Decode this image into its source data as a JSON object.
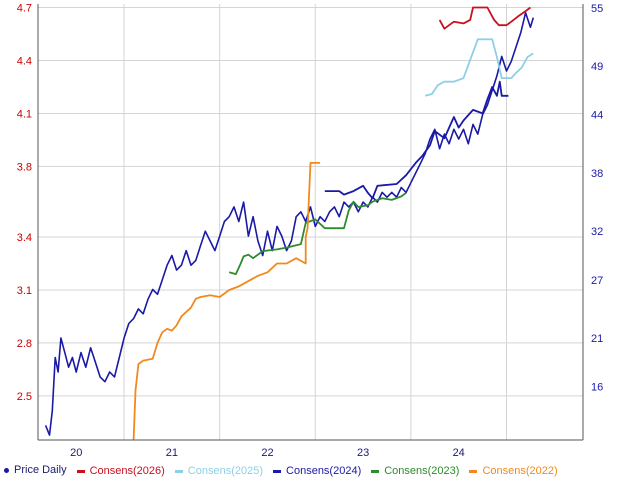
{
  "chart_data": {
    "type": "line",
    "title": "",
    "xlabel": "",
    "ylabel_left": "",
    "ylabel_right": "",
    "grid": true,
    "legend_position": "bottom",
    "x_ticks": [
      {
        "x": 2020.0,
        "label": "20"
      },
      {
        "x": 2021.0,
        "label": "21"
      },
      {
        "x": 2022.0,
        "label": "22"
      },
      {
        "x": 2023.0,
        "label": "23"
      },
      {
        "x": 2024.0,
        "label": "24"
      }
    ],
    "x_gridlines": [
      2020.5,
      2021.5,
      2022.5,
      2023.5,
      2024.5
    ],
    "xlim": [
      2019.6,
      2025.3
    ],
    "y_left": {
      "ticks": [
        {
          "value": 2.5,
          "label": "2.5"
        },
        {
          "value": 2.8,
          "label": "2.8"
        },
        {
          "value": 3.1,
          "label": "3.1"
        },
        {
          "value": 3.4,
          "label": "3.4"
        },
        {
          "value": 3.8,
          "label": "3.8"
        },
        {
          "value": 4.1,
          "label": "4.1"
        },
        {
          "value": 4.4,
          "label": "4.4"
        },
        {
          "value": 4.7,
          "label": "4.7"
        }
      ],
      "color": "#cc0000",
      "lim": [
        2.25,
        4.72
      ]
    },
    "y_right": {
      "ticks": [
        {
          "value": 16,
          "label": "16"
        },
        {
          "value": 21,
          "label": "21"
        },
        {
          "value": 27,
          "label": "27"
        },
        {
          "value": 32,
          "label": "32"
        },
        {
          "value": 38,
          "label": "38"
        },
        {
          "value": 44,
          "label": "44"
        },
        {
          "value": 49,
          "label": "49"
        },
        {
          "value": 55,
          "label": "55"
        }
      ],
      "color": "#1a1aa6",
      "lim": [
        10.5,
        55.4
      ]
    },
    "series": [
      {
        "name": "Price Daily",
        "axis": "right",
        "color": "#1a1aa6",
        "legend_marker": "dot",
        "points": [
          [
            2019.68,
            12.0
          ],
          [
            2019.72,
            11.0
          ],
          [
            2019.75,
            13.5
          ],
          [
            2019.78,
            19.0
          ],
          [
            2019.81,
            17.5
          ],
          [
            2019.84,
            21.0
          ],
          [
            2019.88,
            19.5
          ],
          [
            2019.92,
            18.0
          ],
          [
            2019.96,
            19.0
          ],
          [
            2020.0,
            17.5
          ],
          [
            2020.05,
            19.5
          ],
          [
            2020.1,
            18.0
          ],
          [
            2020.15,
            20.0
          ],
          [
            2020.2,
            18.5
          ],
          [
            2020.25,
            17.0
          ],
          [
            2020.3,
            16.5
          ],
          [
            2020.35,
            17.5
          ],
          [
            2020.4,
            17.0
          ],
          [
            2020.45,
            19.0
          ],
          [
            2020.5,
            21.0
          ],
          [
            2020.55,
            22.5
          ],
          [
            2020.6,
            23.0
          ],
          [
            2020.65,
            24.0
          ],
          [
            2020.7,
            23.5
          ],
          [
            2020.75,
            25.0
          ],
          [
            2020.8,
            26.0
          ],
          [
            2020.85,
            25.5
          ],
          [
            2020.9,
            27.0
          ],
          [
            2020.95,
            28.5
          ],
          [
            2021.0,
            29.5
          ],
          [
            2021.05,
            28.0
          ],
          [
            2021.1,
            28.5
          ],
          [
            2021.15,
            30.0
          ],
          [
            2021.2,
            28.5
          ],
          [
            2021.25,
            29.0
          ],
          [
            2021.3,
            30.5
          ],
          [
            2021.35,
            32.0
          ],
          [
            2021.4,
            31.0
          ],
          [
            2021.45,
            30.0
          ],
          [
            2021.5,
            31.5
          ],
          [
            2021.55,
            33.0
          ],
          [
            2021.6,
            33.5
          ],
          [
            2021.65,
            34.5
          ],
          [
            2021.7,
            33.0
          ],
          [
            2021.75,
            35.0
          ],
          [
            2021.8,
            31.5
          ],
          [
            2021.85,
            33.5
          ],
          [
            2021.9,
            31.0
          ],
          [
            2021.95,
            29.5
          ],
          [
            2022.0,
            32.0
          ],
          [
            2022.05,
            30.0
          ],
          [
            2022.1,
            32.5
          ],
          [
            2022.15,
            31.5
          ],
          [
            2022.2,
            30.0
          ],
          [
            2022.25,
            31.0
          ],
          [
            2022.3,
            33.5
          ],
          [
            2022.35,
            34.0
          ],
          [
            2022.4,
            33.0
          ],
          [
            2022.45,
            34.5
          ],
          [
            2022.5,
            32.5
          ],
          [
            2022.55,
            33.5
          ],
          [
            2022.6,
            33.0
          ],
          [
            2022.65,
            34.0
          ],
          [
            2022.7,
            34.5
          ],
          [
            2022.75,
            33.5
          ],
          [
            2022.8,
            35.0
          ],
          [
            2022.85,
            34.5
          ],
          [
            2022.9,
            35.0
          ],
          [
            2022.95,
            34.0
          ],
          [
            2023.0,
            35.0
          ],
          [
            2023.05,
            34.5
          ],
          [
            2023.1,
            35.5
          ],
          [
            2023.15,
            35.0
          ],
          [
            2023.2,
            36.0
          ],
          [
            2023.25,
            35.5
          ],
          [
            2023.3,
            36.0
          ],
          [
            2023.35,
            35.5
          ],
          [
            2023.4,
            36.5
          ],
          [
            2023.45,
            36.0
          ],
          [
            2023.5,
            37.0
          ],
          [
            2023.55,
            38.0
          ],
          [
            2023.6,
            39.0
          ],
          [
            2023.65,
            40.0
          ],
          [
            2023.7,
            41.5
          ],
          [
            2023.75,
            42.5
          ],
          [
            2023.8,
            40.5
          ],
          [
            2023.85,
            42.0
          ],
          [
            2023.9,
            41.0
          ],
          [
            2023.95,
            42.5
          ],
          [
            2024.0,
            41.5
          ],
          [
            2024.05,
            42.5
          ],
          [
            2024.1,
            41.0
          ],
          [
            2024.15,
            43.0
          ],
          [
            2024.2,
            42.0
          ],
          [
            2024.25,
            44.0
          ],
          [
            2024.3,
            45.0
          ],
          [
            2024.35,
            46.5
          ],
          [
            2024.4,
            48.0
          ],
          [
            2024.45,
            50.0
          ],
          [
            2024.5,
            48.5
          ],
          [
            2024.55,
            49.5
          ],
          [
            2024.6,
            51.0
          ],
          [
            2024.65,
            52.5
          ],
          [
            2024.7,
            54.5
          ],
          [
            2024.75,
            53.0
          ],
          [
            2024.78,
            54.0
          ]
        ]
      },
      {
        "name": "Consens(2026)",
        "axis": "left",
        "color": "#c8101e",
        "legend_marker": "dash",
        "points": [
          [
            2023.8,
            4.63
          ],
          [
            2023.85,
            4.58
          ],
          [
            2023.9,
            4.6
          ],
          [
            2023.95,
            4.62
          ],
          [
            2024.05,
            4.61
          ],
          [
            2024.12,
            4.63
          ],
          [
            2024.15,
            4.7
          ],
          [
            2024.3,
            4.7
          ],
          [
            2024.37,
            4.63
          ],
          [
            2024.42,
            4.6
          ],
          [
            2024.5,
            4.6
          ],
          [
            2024.55,
            4.62
          ],
          [
            2024.62,
            4.65
          ],
          [
            2024.7,
            4.68
          ],
          [
            2024.75,
            4.7
          ]
        ]
      },
      {
        "name": "Consens(2025)",
        "axis": "left",
        "color": "#8fcfe6",
        "legend_marker": "dash",
        "points": [
          [
            2023.65,
            4.2
          ],
          [
            2023.72,
            4.21
          ],
          [
            2023.78,
            4.26
          ],
          [
            2023.85,
            4.28
          ],
          [
            2023.95,
            4.28
          ],
          [
            2024.05,
            4.3
          ],
          [
            2024.2,
            4.52
          ],
          [
            2024.35,
            4.52
          ],
          [
            2024.4,
            4.42
          ],
          [
            2024.45,
            4.3
          ],
          [
            2024.55,
            4.3
          ],
          [
            2024.6,
            4.33
          ],
          [
            2024.66,
            4.36
          ],
          [
            2024.72,
            4.42
          ],
          [
            2024.78,
            4.44
          ]
        ]
      },
      {
        "name": "Consens(2024)",
        "axis": "left",
        "color": "#1a1aa6",
        "legend_marker": "dash",
        "points": [
          [
            2022.6,
            3.66
          ],
          [
            2022.75,
            3.66
          ],
          [
            2022.8,
            3.64
          ],
          [
            2022.9,
            3.66
          ],
          [
            2023.0,
            3.69
          ],
          [
            2023.05,
            3.65
          ],
          [
            2023.1,
            3.62
          ],
          [
            2023.15,
            3.69
          ],
          [
            2023.35,
            3.7
          ],
          [
            2023.45,
            3.75
          ],
          [
            2023.55,
            3.82
          ],
          [
            2023.62,
            3.86
          ],
          [
            2023.7,
            3.92
          ],
          [
            2023.75,
            4.0
          ],
          [
            2023.85,
            3.96
          ],
          [
            2023.95,
            4.08
          ],
          [
            2024.0,
            4.02
          ],
          [
            2024.05,
            4.06
          ],
          [
            2024.15,
            4.12
          ],
          [
            2024.25,
            4.1
          ],
          [
            2024.3,
            4.18
          ],
          [
            2024.35,
            4.25
          ],
          [
            2024.4,
            4.2
          ],
          [
            2024.43,
            4.28
          ],
          [
            2024.45,
            4.2
          ],
          [
            2024.52,
            4.2
          ]
        ]
      },
      {
        "name": "Consens(2023)",
        "axis": "left",
        "color": "#2e8b2e",
        "legend_marker": "dash",
        "points": [
          [
            2021.6,
            3.2
          ],
          [
            2021.67,
            3.19
          ],
          [
            2021.72,
            3.25
          ],
          [
            2021.75,
            3.29
          ],
          [
            2021.8,
            3.3
          ],
          [
            2021.85,
            3.28
          ],
          [
            2021.95,
            3.32
          ],
          [
            2022.1,
            3.33
          ],
          [
            2022.2,
            3.34
          ],
          [
            2022.35,
            3.36
          ],
          [
            2022.4,
            3.48
          ],
          [
            2022.5,
            3.5
          ],
          [
            2022.6,
            3.45
          ],
          [
            2022.8,
            3.45
          ],
          [
            2022.85,
            3.55
          ],
          [
            2022.9,
            3.6
          ],
          [
            2022.95,
            3.57
          ],
          [
            2023.05,
            3.58
          ],
          [
            2023.1,
            3.6
          ],
          [
            2023.2,
            3.62
          ],
          [
            2023.3,
            3.61
          ],
          [
            2023.4,
            3.63
          ],
          [
            2023.45,
            3.65
          ]
        ]
      },
      {
        "name": "Consens(2022)",
        "axis": "left",
        "color": "#f08a1e",
        "legend_marker": "dash",
        "points": [
          [
            2020.6,
            2.25
          ],
          [
            2020.62,
            2.53
          ],
          [
            2020.65,
            2.68
          ],
          [
            2020.7,
            2.7
          ],
          [
            2020.8,
            2.71
          ],
          [
            2020.85,
            2.8
          ],
          [
            2020.9,
            2.86
          ],
          [
            2020.95,
            2.88
          ],
          [
            2021.0,
            2.87
          ],
          [
            2021.05,
            2.9
          ],
          [
            2021.1,
            2.95
          ],
          [
            2021.2,
            3.0
          ],
          [
            2021.25,
            3.05
          ],
          [
            2021.3,
            3.06
          ],
          [
            2021.4,
            3.07
          ],
          [
            2021.5,
            3.06
          ],
          [
            2021.6,
            3.1
          ],
          [
            2021.7,
            3.12
          ],
          [
            2021.8,
            3.15
          ],
          [
            2021.9,
            3.18
          ],
          [
            2022.0,
            3.2
          ],
          [
            2022.1,
            3.25
          ],
          [
            2022.2,
            3.25
          ],
          [
            2022.3,
            3.28
          ],
          [
            2022.4,
            3.25
          ],
          [
            2022.4,
            3.4
          ],
          [
            2022.42,
            3.45
          ],
          [
            2022.45,
            3.82
          ],
          [
            2022.55,
            3.82
          ]
        ]
      }
    ]
  }
}
